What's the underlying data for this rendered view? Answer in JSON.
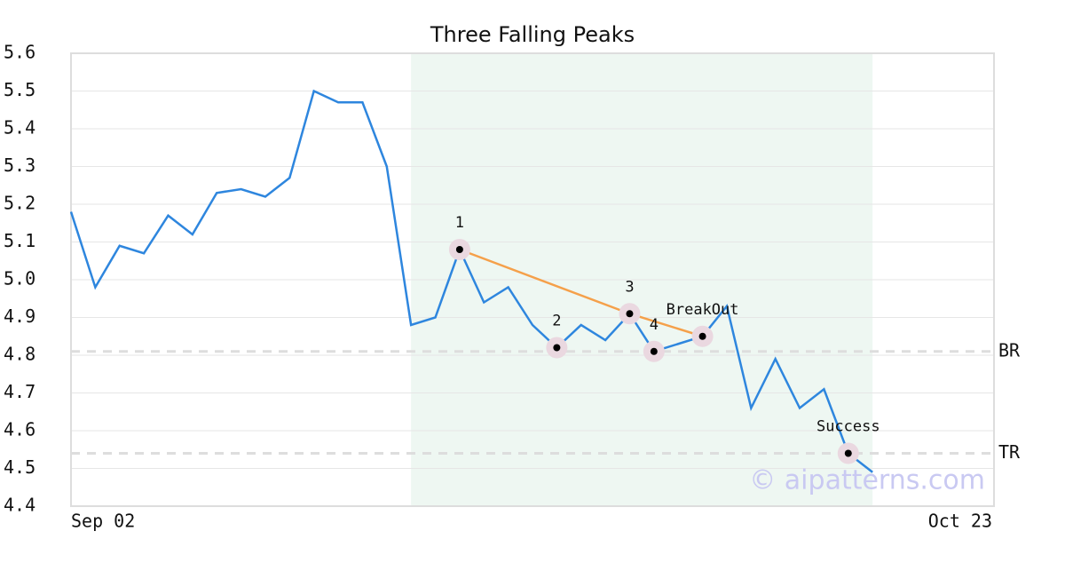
{
  "chart_data": {
    "type": "line",
    "title": "Three Falling Peaks",
    "categories": [
      "Sep 02",
      null,
      null,
      null,
      null,
      null,
      null,
      null,
      null,
      null,
      null,
      null,
      null,
      null,
      null,
      null,
      null,
      null,
      null,
      null,
      null,
      null,
      null,
      null,
      null,
      null,
      null,
      null,
      null,
      null,
      null,
      null,
      null,
      null,
      null,
      null,
      null,
      null,
      "Oct 23"
    ],
    "series": [
      {
        "color": "#2e86de",
        "values": [
          5.18,
          4.98,
          5.09,
          5.07,
          5.17,
          5.12,
          5.23,
          5.24,
          5.22,
          5.27,
          5.5,
          5.47,
          5.47,
          5.3,
          4.88,
          4.9,
          5.08,
          4.94,
          4.98,
          4.88,
          4.82,
          4.88,
          4.84,
          4.91,
          4.81,
          4.83,
          4.85,
          4.93,
          4.66,
          4.79,
          4.66,
          4.71,
          4.54,
          4.49,
          null,
          null,
          null,
          null,
          null
        ]
      }
    ],
    "ylim": [
      4.4,
      5.6
    ],
    "yticks": [
      4.4,
      4.5,
      4.6,
      4.7,
      4.8,
      4.9,
      {
        "value": 5,
        "label": "5.0"
      },
      5.1,
      5.2,
      5.3,
      5.4,
      5.5,
      5.6
    ],
    "grid": true,
    "shaded_range": [
      14,
      33
    ],
    "shade_color": "#eef7f2",
    "trendline": {
      "indices": [
        16,
        23,
        26
      ],
      "color": "#f5a04a"
    },
    "annotations": [
      {
        "text": "1",
        "index": 16
      },
      {
        "text": "2",
        "index": 20
      },
      {
        "text": "3",
        "index": 23
      },
      {
        "text": "4",
        "index": 24
      },
      {
        "text": "BreakOut",
        "index": 26
      },
      {
        "text": "Success",
        "index": 32
      }
    ],
    "reference_lines": [
      {
        "label": "BR",
        "value": 4.81
      },
      {
        "label": "TR",
        "value": 4.54
      }
    ],
    "watermark": "© aipatterns.com"
  }
}
